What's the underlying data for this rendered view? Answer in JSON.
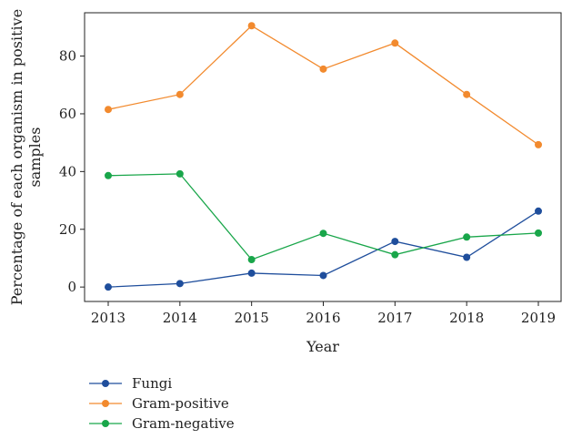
{
  "chart_data": {
    "type": "line",
    "title": "",
    "xlabel": "Year",
    "ylabel_lines": [
      "Percentage of each organism in positive",
      "samples"
    ],
    "categories": [
      "2013",
      "2014",
      "2015",
      "2016",
      "2017",
      "2018",
      "2019"
    ],
    "ylim": [
      -5,
      95
    ],
    "yticks": [
      0,
      20,
      40,
      60,
      80
    ],
    "grid": false,
    "legend_position": "bottom-left, below plot",
    "series": [
      {
        "name": "Fungi",
        "color": "#1f4e9c",
        "values": [
          0,
          1.2,
          4.8,
          4.0,
          15.8,
          10.3,
          26.3
        ]
      },
      {
        "name": "Gram-positive",
        "color": "#f28a2e",
        "values": [
          61.5,
          66.7,
          90.5,
          75.5,
          84.5,
          66.7,
          49.3
        ]
      },
      {
        "name": "Gram-negative",
        "color": "#19a64a",
        "values": [
          38.6,
          39.2,
          9.5,
          18.6,
          11.2,
          17.3,
          18.7
        ]
      }
    ]
  }
}
